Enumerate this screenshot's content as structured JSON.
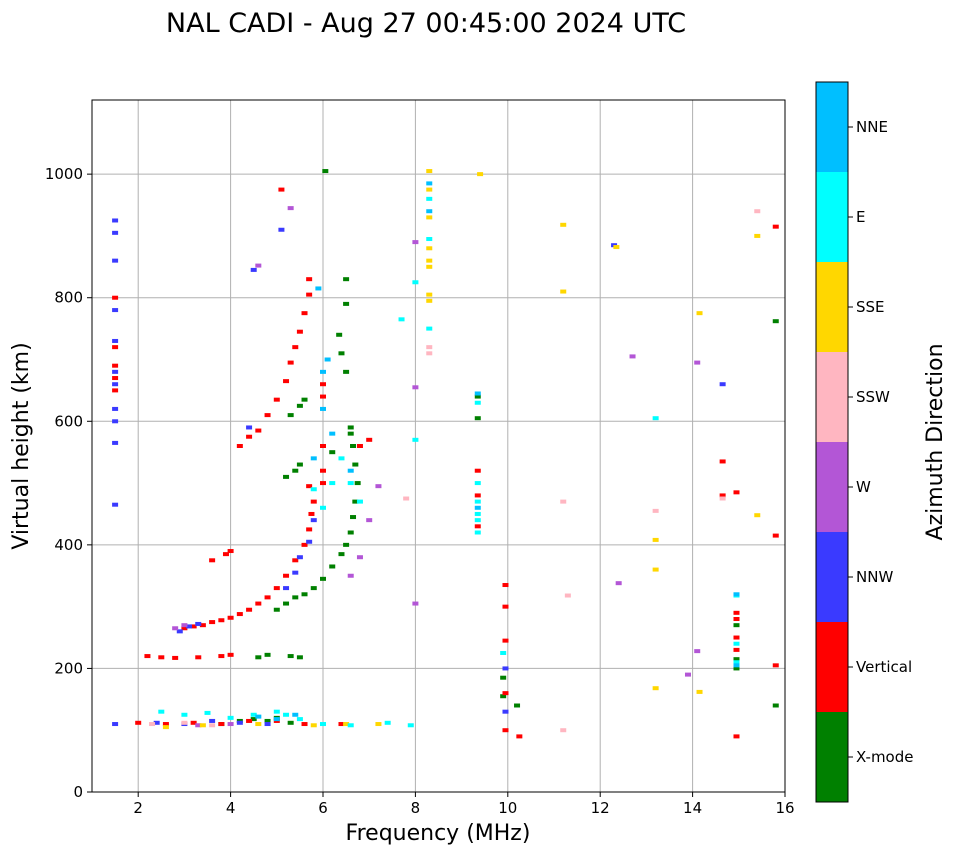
{
  "chart_data": {
    "type": "scatter",
    "title": "NAL CADI - Aug 27 00:45:00 2024 UTC",
    "xlabel": "Frequency (MHz)",
    "ylabel": "Virtual height (km)",
    "xlim": [
      1,
      16
    ],
    "ylim": [
      0,
      1120
    ],
    "x_ticks": [
      "2",
      "4",
      "6",
      "8",
      "10",
      "12",
      "14",
      "16"
    ],
    "y_ticks": [
      "0",
      "200",
      "400",
      "600",
      "800",
      "1000"
    ],
    "grid": true,
    "colorbar": {
      "title": "Azimuth Direction",
      "categories": [
        {
          "name": "X-mode",
          "color": "#008000"
        },
        {
          "name": "Vertical",
          "color": "#ff0000"
        },
        {
          "name": "NNW",
          "color": "#3a3aff"
        },
        {
          "name": "W",
          "color": "#b356d6"
        },
        {
          "name": "SSW",
          "color": "#ffb6c1"
        },
        {
          "name": "SSE",
          "color": "#ffd700"
        },
        {
          "name": "E",
          "color": "#00ffff"
        },
        {
          "name": "NNE",
          "color": "#00bfff"
        }
      ]
    },
    "series": [
      {
        "name": "X-mode",
        "points": [
          [
            5.3,
            220
          ],
          [
            5.5,
            218
          ],
          [
            4.8,
            222
          ],
          [
            4.6,
            218
          ],
          [
            5.0,
            295
          ],
          [
            5.2,
            305
          ],
          [
            5.4,
            315
          ],
          [
            5.6,
            320
          ],
          [
            5.8,
            330
          ],
          [
            6.0,
            345
          ],
          [
            6.2,
            365
          ],
          [
            6.4,
            385
          ],
          [
            6.5,
            400
          ],
          [
            6.6,
            420
          ],
          [
            6.65,
            445
          ],
          [
            6.7,
            470
          ],
          [
            6.75,
            500
          ],
          [
            6.7,
            530
          ],
          [
            6.65,
            560
          ],
          [
            6.6,
            590
          ],
          [
            5.3,
            610
          ],
          [
            5.5,
            625
          ],
          [
            5.6,
            635
          ],
          [
            6.5,
            680
          ],
          [
            6.4,
            710
          ],
          [
            6.35,
            740
          ],
          [
            6.5,
            790
          ],
          [
            6.5,
            830
          ],
          [
            6.05,
            1005
          ],
          [
            9.35,
            640
          ],
          [
            9.35,
            605
          ],
          [
            9.9,
            185
          ],
          [
            9.9,
            155
          ],
          [
            10.2,
            140
          ],
          [
            14.95,
            215
          ],
          [
            14.95,
            200
          ],
          [
            14.95,
            270
          ],
          [
            15.8,
            762
          ],
          [
            15.8,
            140
          ],
          [
            5.0,
            120
          ],
          [
            4.5,
            118
          ],
          [
            4.2,
            115
          ],
          [
            3.8,
            110
          ],
          [
            5.3,
            112
          ],
          [
            4.8,
            115
          ],
          [
            5.5,
            530
          ],
          [
            5.4,
            520
          ],
          [
            5.2,
            510
          ],
          [
            6.2,
            550
          ],
          [
            6.6,
            580
          ]
        ]
      },
      {
        "name": "Vertical",
        "points": [
          [
            2.2,
            220
          ],
          [
            2.5,
            218
          ],
          [
            2.8,
            217
          ],
          [
            3.3,
            218
          ],
          [
            3.8,
            220
          ],
          [
            4.0,
            222
          ],
          [
            3.0,
            265
          ],
          [
            3.2,
            268
          ],
          [
            3.4,
            270
          ],
          [
            3.6,
            275
          ],
          [
            3.8,
            278
          ],
          [
            4.0,
            282
          ],
          [
            4.2,
            288
          ],
          [
            4.4,
            295
          ],
          [
            4.6,
            305
          ],
          [
            4.8,
            315
          ],
          [
            5.0,
            330
          ],
          [
            5.2,
            350
          ],
          [
            5.4,
            375
          ],
          [
            5.6,
            400
          ],
          [
            5.7,
            425
          ],
          [
            5.75,
            450
          ],
          [
            5.8,
            470
          ],
          [
            5.7,
            495
          ],
          [
            3.6,
            375
          ],
          [
            3.9,
            385
          ],
          [
            4.0,
            390
          ],
          [
            4.2,
            560
          ],
          [
            4.4,
            575
          ],
          [
            4.6,
            585
          ],
          [
            4.8,
            610
          ],
          [
            5.0,
            635
          ],
          [
            5.2,
            665
          ],
          [
            5.3,
            695
          ],
          [
            5.4,
            720
          ],
          [
            5.5,
            745
          ],
          [
            5.6,
            775
          ],
          [
            5.7,
            805
          ],
          [
            5.7,
            830
          ],
          [
            5.1,
            975
          ],
          [
            1.5,
            650
          ],
          [
            1.5,
            670
          ],
          [
            1.5,
            690
          ],
          [
            1.5,
            720
          ],
          [
            1.5,
            800
          ],
          [
            6.0,
            500
          ],
          [
            6.0,
            520
          ],
          [
            6.0,
            560
          ],
          [
            6.0,
            640
          ],
          [
            6.0,
            660
          ],
          [
            6.8,
            560
          ],
          [
            7.0,
            570
          ],
          [
            9.35,
            520
          ],
          [
            9.35,
            480
          ],
          [
            9.35,
            430
          ],
          [
            9.95,
            335
          ],
          [
            9.95,
            300
          ],
          [
            9.95,
            245
          ],
          [
            9.95,
            160
          ],
          [
            9.95,
            100
          ],
          [
            10.25,
            90
          ],
          [
            14.65,
            535
          ],
          [
            14.65,
            480
          ],
          [
            14.95,
            485
          ],
          [
            14.95,
            290
          ],
          [
            14.95,
            280
          ],
          [
            14.95,
            250
          ],
          [
            14.95,
            230
          ],
          [
            14.95,
            90
          ],
          [
            15.8,
            205
          ],
          [
            15.8,
            415
          ],
          [
            15.8,
            915
          ],
          [
            2.0,
            112
          ],
          [
            2.6,
            110
          ],
          [
            3.2,
            112
          ],
          [
            3.8,
            110
          ],
          [
            4.4,
            115
          ],
          [
            5.0,
            115
          ],
          [
            5.6,
            110
          ],
          [
            6.4,
            110
          ]
        ]
      },
      {
        "name": "NNW",
        "points": [
          [
            1.5,
            110
          ],
          [
            1.5,
            465
          ],
          [
            1.5,
            565
          ],
          [
            1.5,
            600
          ],
          [
            1.5,
            620
          ],
          [
            1.5,
            660
          ],
          [
            1.5,
            680
          ],
          [
            1.5,
            730
          ],
          [
            1.5,
            780
          ],
          [
            1.5,
            860
          ],
          [
            1.5,
            905
          ],
          [
            1.5,
            925
          ],
          [
            2.9,
            260
          ],
          [
            3.1,
            268
          ],
          [
            3.3,
            272
          ],
          [
            4.4,
            590
          ],
          [
            4.5,
            845
          ],
          [
            5.1,
            910
          ],
          [
            5.2,
            330
          ],
          [
            5.4,
            355
          ],
          [
            5.5,
            380
          ],
          [
            5.7,
            405
          ],
          [
            5.8,
            440
          ],
          [
            9.95,
            200
          ],
          [
            9.95,
            130
          ],
          [
            14.65,
            660
          ],
          [
            12.3,
            885
          ],
          [
            2.4,
            112
          ],
          [
            3.0,
            110
          ],
          [
            3.6,
            115
          ],
          [
            4.2,
            112
          ],
          [
            4.8,
            110
          ]
        ]
      },
      {
        "name": "W",
        "points": [
          [
            2.8,
            265
          ],
          [
            3.0,
            270
          ],
          [
            4.6,
            852
          ],
          [
            5.3,
            945
          ],
          [
            7.2,
            495
          ],
          [
            7.0,
            440
          ],
          [
            6.8,
            380
          ],
          [
            6.6,
            350
          ],
          [
            8.0,
            655
          ],
          [
            8.0,
            305
          ],
          [
            8.0,
            890
          ],
          [
            12.4,
            338
          ],
          [
            12.7,
            705
          ],
          [
            14.1,
            695
          ],
          [
            13.9,
            190
          ],
          [
            14.1,
            228
          ],
          [
            3.3,
            108
          ],
          [
            4.0,
            110
          ]
        ]
      },
      {
        "name": "SSW",
        "points": [
          [
            7.8,
            475
          ],
          [
            8.3,
            720
          ],
          [
            8.3,
            710
          ],
          [
            11.3,
            318
          ],
          [
            11.2,
            100
          ],
          [
            11.2,
            470
          ],
          [
            13.2,
            455
          ],
          [
            15.4,
            940
          ],
          [
            14.65,
            475
          ],
          [
            3.0,
            112
          ],
          [
            3.6,
            108
          ],
          [
            2.3,
            110
          ]
        ]
      },
      {
        "name": "SSE",
        "points": [
          [
            8.3,
            1005
          ],
          [
            8.3,
            975
          ],
          [
            8.3,
            930
          ],
          [
            8.3,
            880
          ],
          [
            8.3,
            860
          ],
          [
            8.3,
            850
          ],
          [
            8.3,
            805
          ],
          [
            8.3,
            795
          ],
          [
            9.4,
            1000
          ],
          [
            11.2,
            918
          ],
          [
            11.2,
            810
          ],
          [
            13.2,
            408
          ],
          [
            13.2,
            360
          ],
          [
            13.2,
            168
          ],
          [
            14.15,
            775
          ],
          [
            14.15,
            162
          ],
          [
            15.4,
            900
          ],
          [
            15.4,
            448
          ],
          [
            12.35,
            882
          ],
          [
            2.6,
            105
          ],
          [
            3.4,
            108
          ],
          [
            4.6,
            110
          ],
          [
            5.8,
            108
          ],
          [
            6.5,
            110
          ],
          [
            7.2,
            110
          ]
        ]
      },
      {
        "name": "E",
        "points": [
          [
            2.5,
            130
          ],
          [
            3.0,
            125
          ],
          [
            3.5,
            128
          ],
          [
            4.0,
            120
          ],
          [
            4.5,
            125
          ],
          [
            5.0,
            130
          ],
          [
            5.2,
            125
          ],
          [
            5.5,
            118
          ],
          [
            6.0,
            110
          ],
          [
            6.6,
            108
          ],
          [
            7.4,
            112
          ],
          [
            7.9,
            108
          ],
          [
            8.0,
            825
          ],
          [
            8.0,
            570
          ],
          [
            7.7,
            765
          ],
          [
            8.3,
            960
          ],
          [
            8.3,
            895
          ],
          [
            8.3,
            750
          ],
          [
            9.35,
            500
          ],
          [
            9.35,
            470
          ],
          [
            9.35,
            450
          ],
          [
            9.35,
            440
          ],
          [
            9.35,
            420
          ],
          [
            9.35,
            630
          ],
          [
            9.9,
            225
          ],
          [
            13.2,
            605
          ],
          [
            14.95,
            318
          ],
          [
            14.95,
            240
          ],
          [
            14.95,
            210
          ],
          [
            5.8,
            490
          ],
          [
            6.0,
            460
          ],
          [
            6.2,
            500
          ],
          [
            6.4,
            540
          ],
          [
            6.6,
            500
          ],
          [
            6.8,
            470
          ]
        ]
      },
      {
        "name": "NNE",
        "points": [
          [
            6.0,
            680
          ],
          [
            6.1,
            700
          ],
          [
            6.0,
            620
          ],
          [
            6.2,
            580
          ],
          [
            6.6,
            520
          ],
          [
            5.8,
            540
          ],
          [
            5.9,
            815
          ],
          [
            8.3,
            985
          ],
          [
            8.3,
            940
          ],
          [
            9.35,
            645
          ],
          [
            9.35,
            460
          ],
          [
            14.95,
            320
          ],
          [
            14.95,
            205
          ],
          [
            5.0,
            118
          ],
          [
            4.6,
            122
          ],
          [
            5.4,
            125
          ]
        ]
      }
    ]
  }
}
